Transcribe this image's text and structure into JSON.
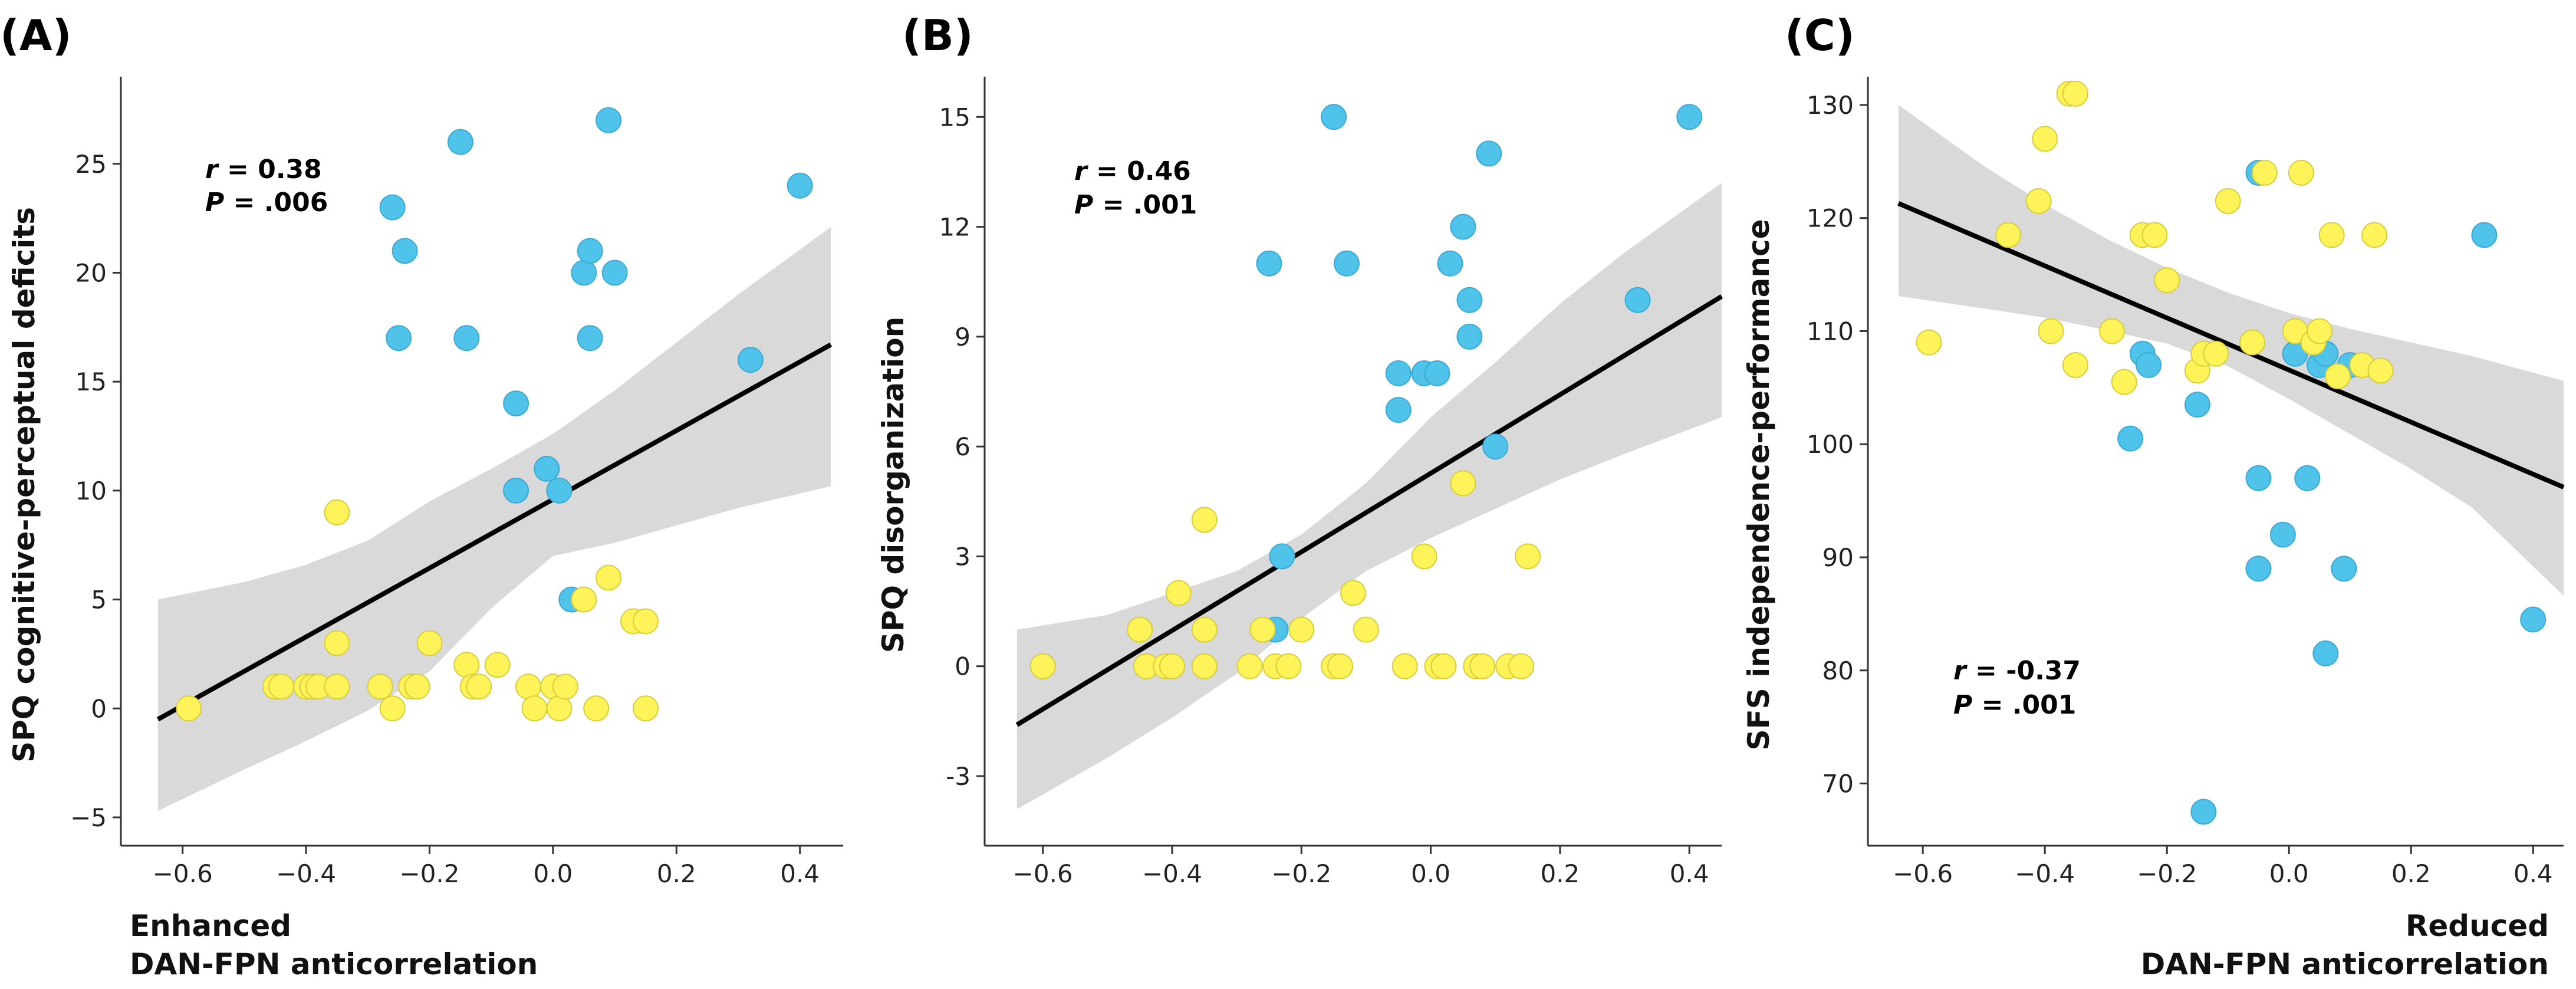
{
  "chart_data": [
    {
      "type": "scatter",
      "panel_label": "(A)",
      "ylabel": "SPQ cognitive-perceptual deficits",
      "xlabel": "",
      "x_note_lines": [
        "Enhanced",
        "DAN-FPN anticorrelation"
      ],
      "xlim": [
        -0.7,
        0.47
      ],
      "ylim": [
        -6.3,
        29
      ],
      "xticks": [
        -0.6,
        -0.4,
        -0.2,
        0.0,
        0.2,
        0.4
      ],
      "xtick_labels": [
        "−0.6",
        "−0.4",
        "−0.2",
        "0.0",
        "0.2",
        "0.4"
      ],
      "yticks": [
        -5,
        0,
        5,
        10,
        15,
        20,
        25
      ],
      "ytick_labels": [
        "−5",
        "0",
        "5",
        "10",
        "15",
        "20",
        "25"
      ],
      "stats": {
        "r_label": "r",
        "r_value": " = 0.38",
        "p_label": "P",
        "p_value": " = .006"
      },
      "regression": {
        "x": [
          -0.64,
          0.45
        ],
        "y": [
          -0.5,
          16.7
        ]
      },
      "confidence_band": {
        "x": [
          -0.64,
          -0.5,
          -0.4,
          -0.3,
          -0.2,
          -0.1,
          0.0,
          0.1,
          0.2,
          0.3,
          0.45
        ],
        "upper": [
          5.0,
          5.8,
          6.6,
          7.7,
          9.5,
          11.0,
          12.6,
          14.6,
          16.8,
          19.0,
          22.1
        ],
        "lower": [
          -4.7,
          -2.8,
          -1.5,
          -0.1,
          1.7,
          4.6,
          7.0,
          7.6,
          8.4,
          9.2,
          10.2
        ]
      },
      "series": [
        {
          "name": "blue group",
          "color": "#4fc3ea",
          "points": [
            [
              -0.26,
              23
            ],
            [
              -0.24,
              21
            ],
            [
              -0.25,
              17
            ],
            [
              -0.15,
              26
            ],
            [
              -0.14,
              17
            ],
            [
              -0.06,
              14
            ],
            [
              -0.06,
              10
            ],
            [
              -0.01,
              11
            ],
            [
              0.01,
              10
            ],
            [
              0.03,
              5
            ],
            [
              0.05,
              20
            ],
            [
              0.06,
              21
            ],
            [
              0.06,
              17
            ],
            [
              0.09,
              27
            ],
            [
              0.1,
              20
            ],
            [
              0.32,
              16
            ],
            [
              0.4,
              24
            ]
          ]
        },
        {
          "name": "yellow group",
          "color": "#fff35a",
          "points": [
            [
              -0.59,
              0
            ],
            [
              -0.45,
              1
            ],
            [
              -0.44,
              1
            ],
            [
              -0.4,
              1
            ],
            [
              -0.39,
              1
            ],
            [
              -0.38,
              1
            ],
            [
              -0.35,
              9
            ],
            [
              -0.35,
              3
            ],
            [
              -0.35,
              1
            ],
            [
              -0.28,
              1
            ],
            [
              -0.26,
              0
            ],
            [
              -0.23,
              1
            ],
            [
              -0.22,
              1
            ],
            [
              -0.2,
              3
            ],
            [
              -0.14,
              2
            ],
            [
              -0.13,
              1
            ],
            [
              -0.12,
              1
            ],
            [
              -0.09,
              2
            ],
            [
              -0.04,
              1
            ],
            [
              -0.03,
              0
            ],
            [
              0.0,
              1
            ],
            [
              0.01,
              0
            ],
            [
              0.02,
              1
            ],
            [
              0.05,
              5
            ],
            [
              0.07,
              0
            ],
            [
              0.09,
              6
            ],
            [
              0.13,
              4
            ],
            [
              0.15,
              4
            ],
            [
              0.15,
              0
            ]
          ]
        }
      ]
    },
    {
      "type": "scatter",
      "panel_label": "(B)",
      "ylabel": "SPQ disorganization",
      "xlabel": "",
      "x_note_lines": [],
      "xlim": [
        -0.69,
        0.45
      ],
      "ylim": [
        -4.9,
        16.1
      ],
      "xticks": [
        -0.6,
        -0.4,
        -0.2,
        0.0,
        0.2,
        0.4
      ],
      "xtick_labels": [
        "−0.6",
        "−0.4",
        "−0.2",
        "0.0",
        "0.2",
        "0.4"
      ],
      "yticks": [
        -3,
        0,
        3,
        6,
        9,
        12,
        15
      ],
      "ytick_labels": [
        "-3",
        "0",
        "3",
        "6",
        "9",
        "12",
        "15"
      ],
      "stats": {
        "r_label": "r",
        "r_value": " = 0.46",
        "p_label": "P",
        "p_value": " = .001"
      },
      "regression": {
        "x": [
          -0.64,
          0.45
        ],
        "y": [
          -1.6,
          10.1
        ]
      },
      "confidence_band": {
        "x": [
          -0.64,
          -0.5,
          -0.4,
          -0.3,
          -0.2,
          -0.1,
          0.0,
          0.1,
          0.2,
          0.3,
          0.45
        ],
        "upper": [
          1.0,
          1.4,
          2.0,
          2.6,
          3.6,
          5.0,
          6.8,
          8.3,
          9.9,
          11.3,
          13.2
        ],
        "lower": [
          -3.9,
          -2.5,
          -1.4,
          -0.2,
          1.3,
          2.6,
          3.5,
          4.3,
          5.1,
          5.8,
          6.8
        ]
      },
      "series": [
        {
          "name": "blue group",
          "color": "#4fc3ea",
          "points": [
            [
              -0.25,
              11
            ],
            [
              -0.23,
              3
            ],
            [
              -0.24,
              1
            ],
            [
              -0.15,
              15
            ],
            [
              -0.13,
              11
            ],
            [
              -0.05,
              8
            ],
            [
              -0.05,
              7
            ],
            [
              -0.01,
              8
            ],
            [
              0.01,
              8
            ],
            [
              0.03,
              11
            ],
            [
              0.05,
              12
            ],
            [
              0.06,
              10
            ],
            [
              0.06,
              9
            ],
            [
              0.09,
              14
            ],
            [
              0.1,
              6
            ],
            [
              0.32,
              10
            ],
            [
              0.4,
              15
            ]
          ]
        },
        {
          "name": "yellow group",
          "color": "#fff35a",
          "points": [
            [
              -0.6,
              0
            ],
            [
              -0.45,
              1
            ],
            [
              -0.44,
              0
            ],
            [
              -0.41,
              0
            ],
            [
              -0.4,
              0
            ],
            [
              -0.39,
              2
            ],
            [
              -0.35,
              4
            ],
            [
              -0.35,
              1
            ],
            [
              -0.35,
              0
            ],
            [
              -0.28,
              0
            ],
            [
              -0.26,
              1
            ],
            [
              -0.24,
              0
            ],
            [
              -0.22,
              0
            ],
            [
              -0.2,
              1
            ],
            [
              -0.15,
              0
            ],
            [
              -0.14,
              0
            ],
            [
              -0.12,
              2
            ],
            [
              -0.1,
              1
            ],
            [
              -0.04,
              0
            ],
            [
              -0.01,
              3
            ],
            [
              0.01,
              0
            ],
            [
              0.02,
              0
            ],
            [
              0.05,
              5
            ],
            [
              0.07,
              0
            ],
            [
              0.08,
              0
            ],
            [
              0.12,
              0
            ],
            [
              0.14,
              0
            ],
            [
              0.15,
              3
            ]
          ]
        }
      ]
    },
    {
      "type": "scatter",
      "panel_label": "(C)",
      "ylabel": "SFS independence-performance",
      "xlabel": "",
      "x_note_lines": [
        "Reduced",
        "DAN-FPN anticorrelation"
      ],
      "xlim": [
        -0.69,
        0.45
      ],
      "ylim": [
        64.5,
        132.5
      ],
      "xticks": [
        -0.6,
        -0.4,
        -0.2,
        0.0,
        0.2,
        0.4
      ],
      "xtick_labels": [
        "−0.6",
        "−0.4",
        "−0.2",
        "0.0",
        "0.2",
        "0.4"
      ],
      "yticks": [
        70,
        80,
        90,
        100,
        110,
        120,
        130
      ],
      "ytick_labels": [
        "70",
        "80",
        "90",
        "100",
        "110",
        "120",
        "130"
      ],
      "stats": {
        "r_label": "r",
        "r_value": " = -0.37",
        "p_label": "P",
        "p_value": " = .001"
      },
      "regression": {
        "x": [
          -0.64,
          0.45
        ],
        "y": [
          121.3,
          96.2
        ]
      },
      "confidence_band": {
        "x": [
          -0.64,
          -0.5,
          -0.4,
          -0.3,
          -0.2,
          -0.1,
          0.0,
          0.1,
          0.2,
          0.3,
          0.45
        ],
        "upper": [
          130.0,
          124.6,
          121.2,
          118.2,
          115.6,
          113.4,
          111.6,
          110.2,
          109.0,
          107.8,
          105.6
        ],
        "lower": [
          113.1,
          112.0,
          111.2,
          110.1,
          108.9,
          106.9,
          104.0,
          100.9,
          97.8,
          94.4,
          86.6
        ]
      },
      "series": [
        {
          "name": "blue group",
          "color": "#4fc3ea",
          "points": [
            [
              -0.26,
              100.5
            ],
            [
              -0.24,
              108
            ],
            [
              -0.23,
              107
            ],
            [
              -0.15,
              103.5
            ],
            [
              -0.14,
              67.5
            ],
            [
              -0.05,
              124
            ],
            [
              -0.05,
              97
            ],
            [
              -0.05,
              89
            ],
            [
              -0.01,
              92
            ],
            [
              0.01,
              108
            ],
            [
              0.03,
              97
            ],
            [
              0.05,
              107
            ],
            [
              0.06,
              108
            ],
            [
              0.06,
              81.5
            ],
            [
              0.09,
              89
            ],
            [
              0.1,
              107
            ],
            [
              0.32,
              118.5
            ],
            [
              0.4,
              84.5
            ]
          ]
        },
        {
          "name": "yellow group",
          "color": "#fff35a",
          "points": [
            [
              -0.59,
              109
            ],
            [
              -0.46,
              118.5
            ],
            [
              -0.4,
              127
            ],
            [
              -0.41,
              121.5
            ],
            [
              -0.39,
              110
            ],
            [
              -0.36,
              131
            ],
            [
              -0.35,
              131
            ],
            [
              -0.35,
              107
            ],
            [
              -0.29,
              110
            ],
            [
              -0.27,
              105.5
            ],
            [
              -0.24,
              118.5
            ],
            [
              -0.22,
              118.5
            ],
            [
              -0.2,
              114.5
            ],
            [
              -0.15,
              106.5
            ],
            [
              -0.14,
              108
            ],
            [
              -0.12,
              108
            ],
            [
              -0.1,
              121.5
            ],
            [
              -0.06,
              109
            ],
            [
              -0.04,
              124
            ],
            [
              0.01,
              110
            ],
            [
              0.02,
              124
            ],
            [
              0.04,
              109
            ],
            [
              0.05,
              110
            ],
            [
              0.07,
              118.5
            ],
            [
              0.08,
              106
            ],
            [
              0.12,
              107
            ],
            [
              0.14,
              118.5
            ],
            [
              0.15,
              106.5
            ]
          ]
        }
      ]
    }
  ]
}
